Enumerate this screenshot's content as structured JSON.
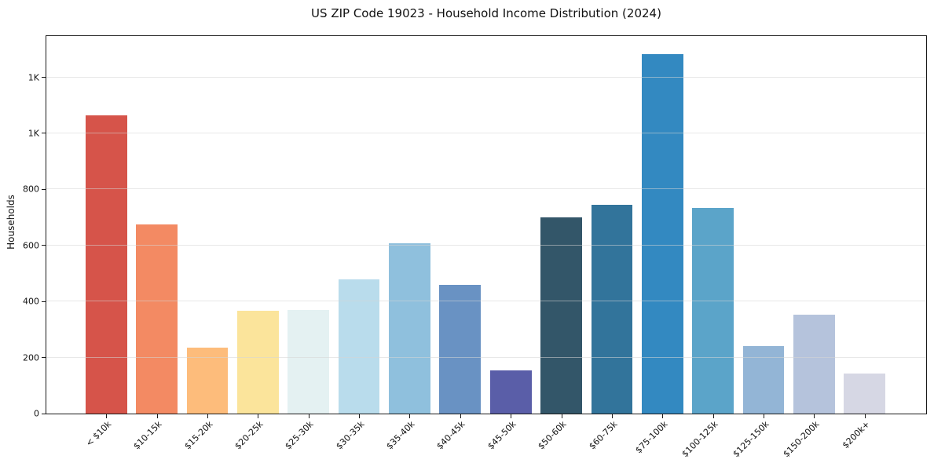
{
  "chart_data": {
    "type": "bar",
    "title": "US ZIP Code 19023 - Household Income Distribution (2024)",
    "xlabel": "",
    "ylabel": "Households",
    "categories": [
      "< $10k",
      "$10-15k",
      "$15-20k",
      "$20-25k",
      "$25-30k",
      "$30-35k",
      "$35-40k",
      "$40-45k",
      "$45-50k",
      "$50-60k",
      "$60-75k",
      "$75-100k",
      "$100-125k",
      "$125-150k",
      "$150-200k",
      "$200k+"
    ],
    "values": [
      1065,
      675,
      235,
      368,
      370,
      478,
      608,
      460,
      155,
      700,
      745,
      1283,
      735,
      240,
      353,
      143
    ],
    "bar_colors": [
      "#d6544a",
      "#f38a63",
      "#fdbc7b",
      "#fbe49b",
      "#e4f1f2",
      "#b9dcec",
      "#8fc0dd",
      "#6992c3",
      "#5a5ea8",
      "#335669",
      "#32749b",
      "#3389c1",
      "#5ba4c9",
      "#93b5d6",
      "#b5c3dc",
      "#d6d7e4"
    ],
    "ylim": [
      0,
      1347
    ],
    "yticks": [
      {
        "value": 0,
        "label": "0"
      },
      {
        "value": 200,
        "label": "200"
      },
      {
        "value": 400,
        "label": "400"
      },
      {
        "value": 600,
        "label": "600"
      },
      {
        "value": 800,
        "label": "800"
      },
      {
        "value": 1000,
        "label": "1K"
      },
      {
        "value": 1200,
        "label": "1K"
      }
    ],
    "grid": "horizontal",
    "legend": "none",
    "frame": "full-box"
  }
}
